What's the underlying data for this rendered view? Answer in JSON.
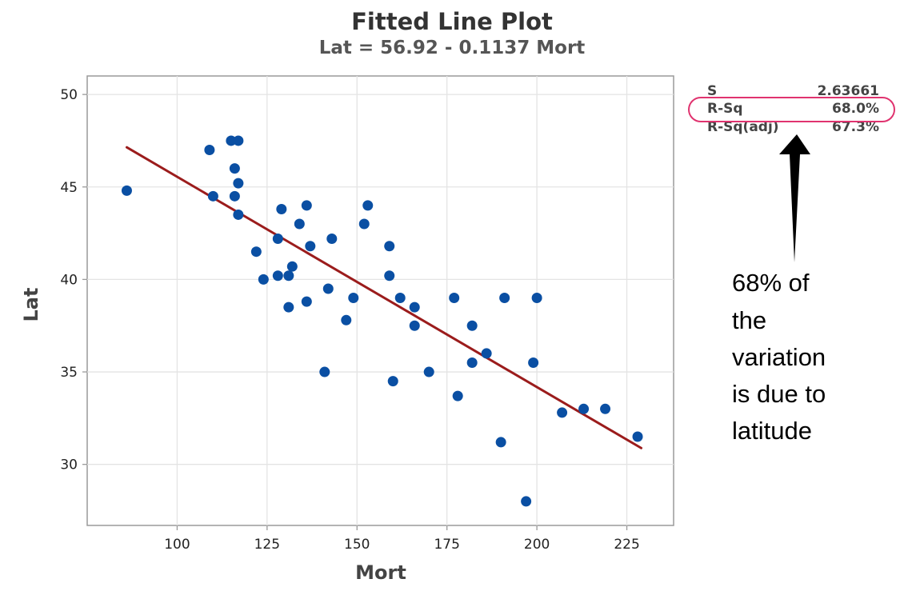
{
  "chart_data": {
    "type": "scatter",
    "title": "Fitted Line Plot",
    "subtitle": "Lat = 56.92 - 0.1137 Mort",
    "xlabel": "Mort",
    "ylabel": "Lat",
    "xlim": [
      75,
      238
    ],
    "ylim": [
      26.7,
      51
    ],
    "xticks": [
      100,
      125,
      150,
      175,
      200,
      225
    ],
    "yticks": [
      30,
      35,
      40,
      45,
      50
    ],
    "grid": true,
    "fit": {
      "intercept": 56.92,
      "slope": -0.1137,
      "x_range": [
        86,
        229
      ],
      "color": "#9b1c1c"
    },
    "marker_color": "#0a4fa3",
    "points": [
      {
        "x": 86,
        "y": 44.8
      },
      {
        "x": 109,
        "y": 47
      },
      {
        "x": 110,
        "y": 44.5
      },
      {
        "x": 115,
        "y": 47.5
      },
      {
        "x": 116,
        "y": 46
      },
      {
        "x": 116,
        "y": 44.5
      },
      {
        "x": 117,
        "y": 47.5
      },
      {
        "x": 117,
        "y": 45.2
      },
      {
        "x": 117,
        "y": 43.5
      },
      {
        "x": 122,
        "y": 41.5
      },
      {
        "x": 124,
        "y": 40
      },
      {
        "x": 128,
        "y": 42.2
      },
      {
        "x": 128,
        "y": 40.2
      },
      {
        "x": 129,
        "y": 43.8
      },
      {
        "x": 131,
        "y": 40.2
      },
      {
        "x": 131,
        "y": 38.5
      },
      {
        "x": 132,
        "y": 40.7
      },
      {
        "x": 134,
        "y": 43
      },
      {
        "x": 136,
        "y": 44
      },
      {
        "x": 136,
        "y": 38.8
      },
      {
        "x": 137,
        "y": 41.8
      },
      {
        "x": 141,
        "y": 35
      },
      {
        "x": 142,
        "y": 39.5
      },
      {
        "x": 143,
        "y": 42.2
      },
      {
        "x": 147,
        "y": 37.8
      },
      {
        "x": 149,
        "y": 39
      },
      {
        "x": 152,
        "y": 43
      },
      {
        "x": 153,
        "y": 44
      },
      {
        "x": 159,
        "y": 41.8
      },
      {
        "x": 159,
        "y": 40.2
      },
      {
        "x": 160,
        "y": 34.5
      },
      {
        "x": 162,
        "y": 39
      },
      {
        "x": 166,
        "y": 38.5
      },
      {
        "x": 166,
        "y": 37.5
      },
      {
        "x": 170,
        "y": 35
      },
      {
        "x": 177,
        "y": 39
      },
      {
        "x": 178,
        "y": 33.7
      },
      {
        "x": 182,
        "y": 37.5
      },
      {
        "x": 182,
        "y": 35.5
      },
      {
        "x": 186,
        "y": 36
      },
      {
        "x": 190,
        "y": 31.2
      },
      {
        "x": 191,
        "y": 39
      },
      {
        "x": 197,
        "y": 28
      },
      {
        "x": 199,
        "y": 35.5
      },
      {
        "x": 200,
        "y": 39
      },
      {
        "x": 207,
        "y": 32.8
      },
      {
        "x": 213,
        "y": 33
      },
      {
        "x": 219,
        "y": 33
      },
      {
        "x": 228,
        "y": 31.5
      }
    ],
    "stats": [
      {
        "label": "S",
        "value": "2.63661"
      },
      {
        "label": "R-Sq",
        "value": "68.0%"
      },
      {
        "label": "R-Sq(adj)",
        "value": "67.3%"
      }
    ],
    "highlight_color": "#e0336f",
    "annotation": [
      "68% of",
      "the",
      "variation",
      "is due to",
      "latitude"
    ]
  }
}
